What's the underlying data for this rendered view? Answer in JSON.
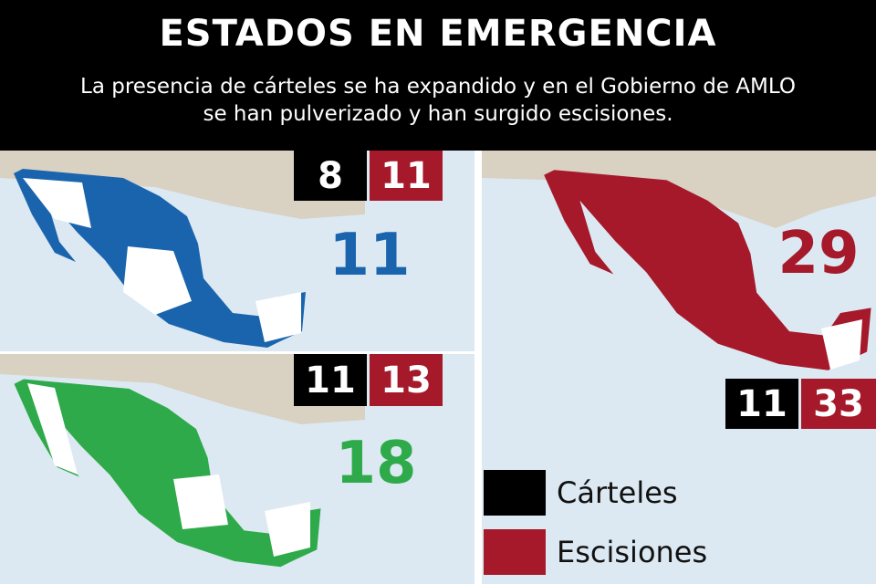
{
  "header": {
    "title": "ESTADOS EN EMERGENCIA",
    "subtitle": [
      "La presencia de cárteles se ha expandido y en el Gobierno de AMLO",
      "se han pulverizado y han surgido escisiones."
    ]
  },
  "panels": [
    {
      "carteles": 8,
      "escisiones": 11,
      "estados": 11
    },
    {
      "carteles": 11,
      "escisiones": 13,
      "estados": 18
    },
    {
      "carteles": 11,
      "escisiones": 33,
      "estados": 29
    }
  ],
  "legend": {
    "carteles": "Cárteles",
    "escisiones": "Escisiones"
  }
}
